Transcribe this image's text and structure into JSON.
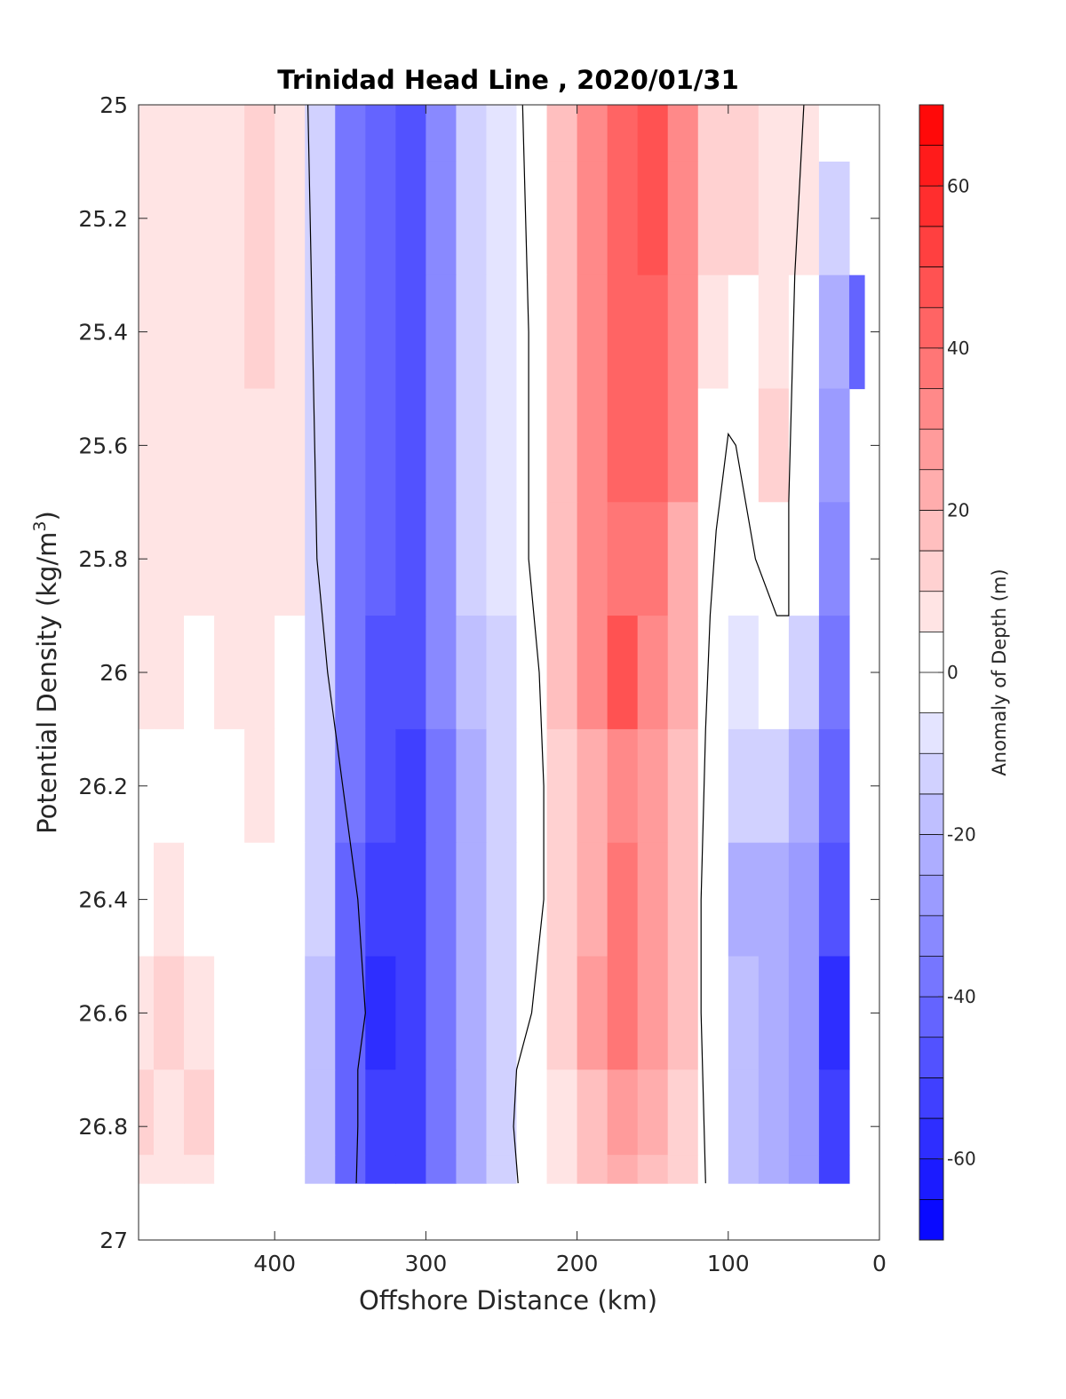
{
  "chart_data": {
    "type": "heatmap",
    "title": "Trinidad Head Line , 2020/01/31",
    "xlabel": "Offshore Distance (km)",
    "ylabel": "Potential Density (kg/m",
    "ylabel_sup": "3",
    "ylabel_close": ")",
    "xlim": [
      490,
      0
    ],
    "ylim": [
      25,
      27
    ],
    "y_reversed": true,
    "x_reversed": true,
    "xticks": [
      400,
      300,
      200,
      100,
      0
    ],
    "yticks": [
      25,
      25.2,
      25.4,
      25.6,
      25.8,
      26,
      26.2,
      26.4,
      26.6,
      26.8,
      27
    ],
    "data_y_max": 26.9,
    "colorbar": {
      "label": "Anomaly of Depth (m)",
      "min": -70,
      "max": 70,
      "step": 5,
      "ticks": [
        60,
        40,
        20,
        0,
        -20,
        -40,
        -60
      ],
      "colormap": "blue-white-red",
      "neg_color": "#0000ff",
      "pos_color": "#ff0000"
    },
    "x": [
      490,
      470,
      450,
      430,
      410,
      390,
      370,
      350,
      330,
      310,
      290,
      270,
      250,
      230,
      210,
      190,
      170,
      150,
      130,
      110,
      90,
      70,
      50,
      30,
      10
    ],
    "y": [
      25.0,
      25.2,
      25.4,
      25.6,
      25.8,
      26.0,
      26.2,
      26.4,
      26.6,
      26.8,
      26.9
    ],
    "z": [
      [
        5,
        5,
        5,
        7,
        12,
        5,
        -15,
        -38,
        -45,
        -48,
        -35,
        -15,
        -10,
        2,
        15,
        30,
        40,
        45,
        30,
        12,
        12,
        8,
        5,
        -5,
        null
      ],
      [
        5,
        5,
        5,
        7,
        12,
        5,
        -15,
        -38,
        -45,
        -48,
        -35,
        -15,
        -10,
        2,
        15,
        30,
        40,
        45,
        30,
        12,
        12,
        8,
        5,
        -15,
        null
      ],
      [
        5,
        5,
        5,
        7,
        10,
        5,
        -15,
        -38,
        -45,
        -48,
        -35,
        -15,
        -10,
        2,
        15,
        30,
        40,
        40,
        30,
        8,
        2,
        5,
        4,
        -25,
        -45
      ],
      [
        5,
        5,
        5,
        7,
        8,
        5,
        -15,
        -38,
        -45,
        -50,
        -35,
        -15,
        -10,
        0,
        15,
        30,
        40,
        40,
        30,
        0,
        -2,
        10,
        3,
        -30,
        null
      ],
      [
        5,
        5,
        5,
        5,
        5,
        5,
        -15,
        -38,
        -45,
        -50,
        -35,
        -15,
        -10,
        0,
        15,
        30,
        35,
        35,
        20,
        0,
        -5,
        -3,
        0,
        -35,
        null
      ],
      [
        5,
        5,
        0,
        5,
        5,
        2,
        -15,
        -40,
        -48,
        -50,
        -35,
        -20,
        -12,
        0,
        15,
        30,
        45,
        30,
        20,
        -5,
        -10,
        -5,
        -15,
        -40,
        null
      ],
      [
        0,
        0,
        0,
        0,
        5,
        0,
        -15,
        -40,
        -50,
        -52,
        -40,
        -25,
        -15,
        0,
        10,
        20,
        30,
        25,
        15,
        -5,
        -15,
        -15,
        -22,
        -45,
        null
      ],
      [
        0,
        5,
        2,
        0,
        0,
        0,
        -15,
        -42,
        -55,
        -55,
        -40,
        -25,
        -15,
        -2,
        10,
        20,
        35,
        25,
        15,
        -5,
        -25,
        -22,
        -28,
        -50,
        null
      ],
      [
        5,
        10,
        5,
        0,
        0,
        -5,
        -20,
        -45,
        -58,
        -55,
        -40,
        -25,
        -15,
        -2,
        10,
        25,
        35,
        25,
        15,
        -5,
        -20,
        -25,
        -30,
        -60,
        null
      ],
      [
        10,
        5,
        10,
        0,
        0,
        -5,
        -20,
        -45,
        -55,
        -55,
        -40,
        -25,
        -15,
        -2,
        5,
        15,
        25,
        20,
        10,
        -5,
        -20,
        -25,
        -30,
        -55,
        null
      ],
      [
        5,
        5,
        5,
        0,
        0,
        -5,
        -20,
        -45,
        -55,
        -55,
        -40,
        -25,
        -15,
        -2,
        5,
        15,
        20,
        15,
        10,
        -5,
        -20,
        -25,
        -30,
        -55,
        null
      ]
    ],
    "zero_contours": [
      [
        [
          378,
          25.0
        ],
        [
          375,
          25.4
        ],
        [
          372,
          25.8
        ],
        [
          365,
          26.0
        ],
        [
          355,
          26.2
        ],
        [
          345,
          26.4
        ],
        [
          340,
          26.6
        ],
        [
          345,
          26.7
        ],
        [
          345,
          26.8
        ],
        [
          346,
          26.9
        ]
      ],
      [
        [
          236,
          25.0
        ],
        [
          232,
          25.4
        ],
        [
          232,
          25.8
        ],
        [
          225,
          26.0
        ],
        [
          222,
          26.2
        ],
        [
          222,
          26.4
        ],
        [
          230,
          26.6
        ],
        [
          240,
          26.7
        ],
        [
          242,
          26.8
        ],
        [
          239,
          26.9
        ]
      ],
      [
        [
          50,
          25.0
        ],
        [
          56,
          25.3
        ],
        [
          58,
          25.5
        ],
        [
          60,
          25.7
        ],
        [
          60,
          25.9
        ],
        [
          68,
          25.9
        ],
        [
          82,
          25.8
        ],
        [
          95,
          25.6
        ],
        [
          100,
          25.58
        ],
        [
          108,
          25.75
        ],
        [
          112,
          25.9
        ],
        [
          115,
          26.1
        ],
        [
          118,
          26.4
        ],
        [
          118,
          26.6
        ],
        [
          116,
          26.8
        ],
        [
          115,
          26.9
        ]
      ]
    ]
  }
}
